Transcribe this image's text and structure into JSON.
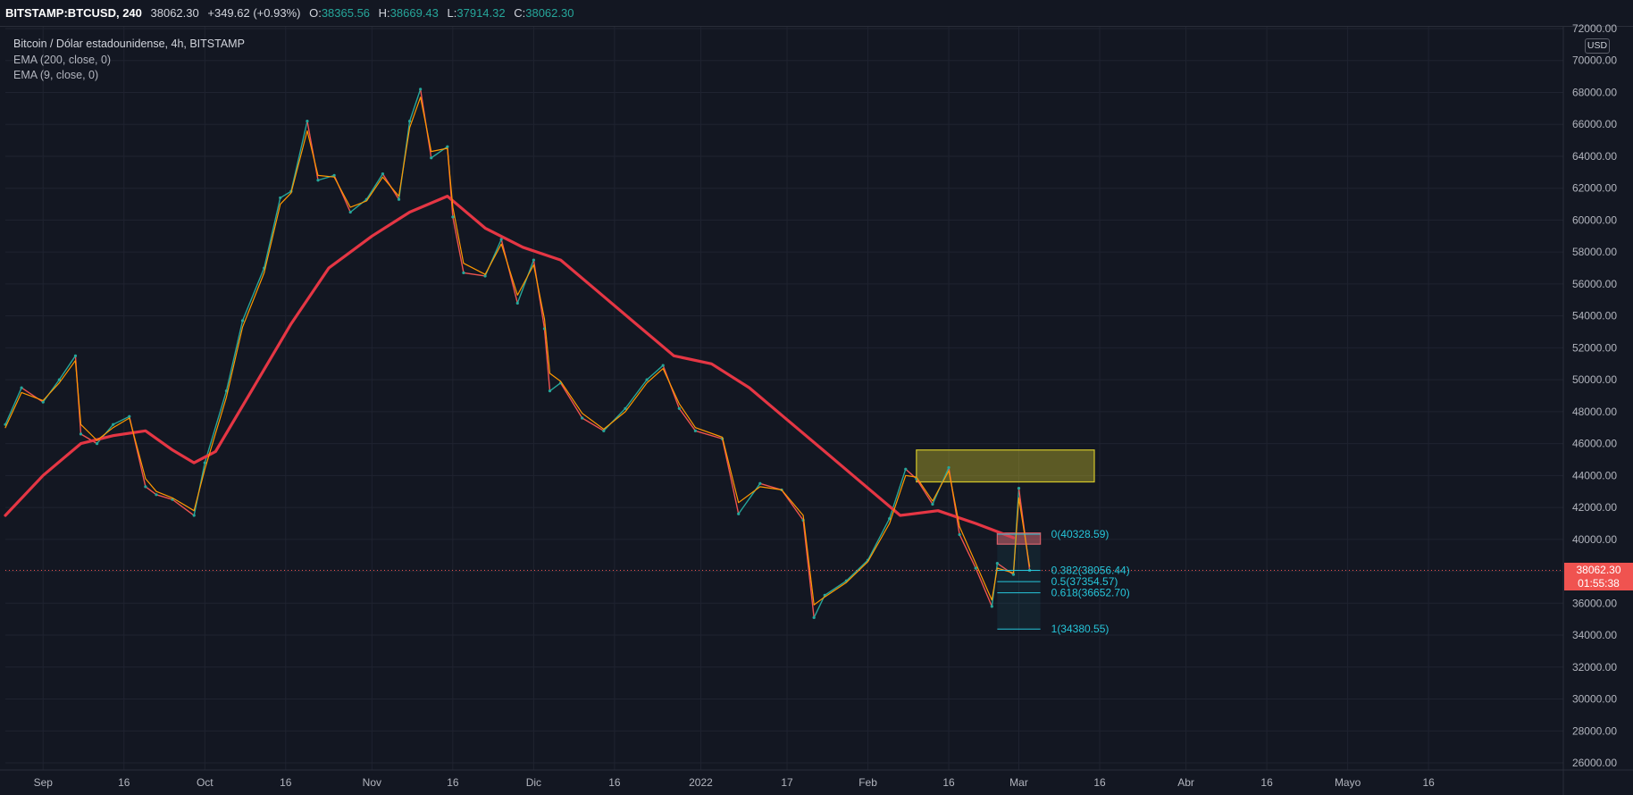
{
  "header": {
    "symbol": "BITSTAMP:BTCUSD, 240",
    "last": "38062.30",
    "change": "+349.62 (+0.93%)",
    "open_label": "O:",
    "open": "38365.56",
    "high_label": "H:",
    "high": "38669.43",
    "low_label": "L:",
    "low": "37914.32",
    "close_label": "C:",
    "close": "38062.30"
  },
  "legend": {
    "main": "Bitcoin / Dólar estadounidense, 4h, BITSTAMP",
    "ema200": "EMA (200, close, 0)",
    "ema9": "EMA (9, close, 0)"
  },
  "price_tag": {
    "price": "38062.30",
    "countdown": "01:55:38"
  },
  "currency": "USD",
  "colors": {
    "background": "#131722",
    "up": "#26a69a",
    "down": "#ef5350",
    "ema200": "#e53644",
    "ema9": "#ff9800",
    "fib": "#26c6da",
    "supply_zone": "#d4c72a",
    "resistance_zone": "#e05a62"
  },
  "chart_data": {
    "type": "line",
    "ylim": [
      26000,
      72000
    ],
    "y_ticks": [
      26000,
      28000,
      30000,
      32000,
      34000,
      36000,
      38000,
      40000,
      42000,
      44000,
      46000,
      48000,
      50000,
      52000,
      54000,
      56000,
      58000,
      60000,
      62000,
      64000,
      66000,
      68000,
      70000,
      72000
    ],
    "x_ticks": [
      "Sep",
      "16",
      "Oct",
      "16",
      "Nov",
      "16",
      "Dic",
      "16",
      "2022",
      "17",
      "Feb",
      "16",
      "Mar",
      "16",
      "Abr",
      "16",
      "Mayo",
      "16"
    ],
    "x_tick_dates": [
      "2021-09-01",
      "2021-09-16",
      "2021-10-01",
      "2021-10-16",
      "2021-11-01",
      "2021-11-16",
      "2021-12-01",
      "2021-12-16",
      "2022-01-01",
      "2022-01-17",
      "2022-02-01",
      "2022-02-16",
      "2022-03-01",
      "2022-03-16",
      "2022-04-01",
      "2022-04-16",
      "2022-05-01",
      "2022-05-16"
    ],
    "xlim": [
      "2021-08-25",
      "2022-06-10"
    ],
    "series": [
      {
        "name": "Bitcoin / Dólar estadounidense, 4h, BITSTAMP",
        "x": [
          "2021-08-25",
          "2021-08-28",
          "2021-09-01",
          "2021-09-04",
          "2021-09-07",
          "2021-09-08",
          "2021-09-11",
          "2021-09-14",
          "2021-09-17",
          "2021-09-20",
          "2021-09-22",
          "2021-09-25",
          "2021-09-29",
          "2021-10-01",
          "2021-10-05",
          "2021-10-08",
          "2021-10-12",
          "2021-10-15",
          "2021-10-17",
          "2021-10-20",
          "2021-10-22",
          "2021-10-25",
          "2021-10-28",
          "2021-10-31",
          "2021-11-03",
          "2021-11-06",
          "2021-11-08",
          "2021-11-10",
          "2021-11-12",
          "2021-11-15",
          "2021-11-16",
          "2021-11-18",
          "2021-11-22",
          "2021-11-25",
          "2021-11-28",
          "2021-12-01",
          "2021-12-03",
          "2021-12-04",
          "2021-12-06",
          "2021-12-10",
          "2021-12-14",
          "2021-12-18",
          "2021-12-22",
          "2021-12-25",
          "2021-12-28",
          "2021-12-31",
          "2022-01-05",
          "2022-01-08",
          "2022-01-12",
          "2022-01-16",
          "2022-01-20",
          "2022-01-22",
          "2022-01-24",
          "2022-01-28",
          "2022-02-01",
          "2022-02-05",
          "2022-02-08",
          "2022-02-10",
          "2022-02-13",
          "2022-02-16",
          "2022-02-18",
          "2022-02-21",
          "2022-02-24",
          "2022-02-25",
          "2022-02-28",
          "2022-03-01",
          "2022-03-03"
        ],
        "values": [
          47200,
          49500,
          48600,
          50000,
          51500,
          46600,
          46000,
          47200,
          47700,
          43300,
          42800,
          42500,
          41500,
          44800,
          49300,
          53700,
          57000,
          61400,
          61800,
          66200,
          62500,
          62800,
          60500,
          61300,
          62900,
          61300,
          66200,
          68200,
          63900,
          64600,
          60200,
          56700,
          56500,
          58800,
          54800,
          57500,
          53200,
          49300,
          49800,
          47600,
          46800,
          48200,
          50000,
          50900,
          48200,
          46800,
          46300,
          41600,
          43500,
          43100,
          41200,
          35100,
          36500,
          37400,
          38700,
          41300,
          44400,
          43800,
          42200,
          44500,
          40300,
          38200,
          35800,
          38500,
          37800,
          43200,
          38062
        ]
      },
      {
        "name": "EMA (200, close, 0)",
        "x": [
          "2021-08-25",
          "2021-09-01",
          "2021-09-08",
          "2021-09-14",
          "2021-09-20",
          "2021-09-25",
          "2021-09-29",
          "2021-10-03",
          "2021-10-10",
          "2021-10-17",
          "2021-10-24",
          "2021-11-01",
          "2021-11-08",
          "2021-11-15",
          "2021-11-22",
          "2021-11-29",
          "2021-12-06",
          "2021-12-13",
          "2021-12-20",
          "2021-12-27",
          "2022-01-03",
          "2022-01-10",
          "2022-01-17",
          "2022-01-24",
          "2022-01-31",
          "2022-02-07",
          "2022-02-14",
          "2022-02-21",
          "2022-02-28"
        ],
        "values": [
          41500,
          44000,
          46000,
          46500,
          46800,
          45600,
          44800,
          45500,
          49500,
          53500,
          57000,
          59000,
          60500,
          61500,
          59500,
          58300,
          57500,
          55500,
          53500,
          51500,
          51000,
          49500,
          47500,
          45500,
          43500,
          41500,
          41800,
          41000,
          40100
        ]
      },
      {
        "name": "EMA (9, close, 0)",
        "x": [
          "2021-08-25",
          "2021-08-28",
          "2021-09-01",
          "2021-09-04",
          "2021-09-07",
          "2021-09-08",
          "2021-09-11",
          "2021-09-14",
          "2021-09-17",
          "2021-09-20",
          "2021-09-22",
          "2021-09-25",
          "2021-09-29",
          "2021-10-01",
          "2021-10-05",
          "2021-10-08",
          "2021-10-12",
          "2021-10-15",
          "2021-10-17",
          "2021-10-20",
          "2021-10-22",
          "2021-10-25",
          "2021-10-28",
          "2021-10-31",
          "2021-11-03",
          "2021-11-06",
          "2021-11-08",
          "2021-11-10",
          "2021-11-12",
          "2021-11-15",
          "2021-11-16",
          "2021-11-18",
          "2021-11-22",
          "2021-11-25",
          "2021-11-28",
          "2021-12-01",
          "2021-12-03",
          "2021-12-04",
          "2021-12-06",
          "2021-12-10",
          "2021-12-14",
          "2021-12-18",
          "2021-12-22",
          "2021-12-25",
          "2021-12-28",
          "2021-12-31",
          "2022-01-05",
          "2022-01-08",
          "2022-01-12",
          "2022-01-16",
          "2022-01-20",
          "2022-01-22",
          "2022-01-24",
          "2022-01-28",
          "2022-02-01",
          "2022-02-05",
          "2022-02-08",
          "2022-02-10",
          "2022-02-13",
          "2022-02-16",
          "2022-02-18",
          "2022-02-21",
          "2022-02-24",
          "2022-02-25",
          "2022-02-28",
          "2022-03-01",
          "2022-03-03"
        ],
        "values": [
          47000,
          49200,
          48700,
          49800,
          51200,
          47200,
          46200,
          47000,
          47600,
          43800,
          43000,
          42600,
          41800,
          44400,
          48900,
          53300,
          56700,
          61000,
          61700,
          65600,
          62800,
          62700,
          60800,
          61200,
          62700,
          61500,
          65800,
          67700,
          64300,
          64500,
          60800,
          57300,
          56600,
          58500,
          55300,
          57200,
          53800,
          50400,
          49900,
          47900,
          46900,
          48000,
          49800,
          50700,
          48500,
          47000,
          46400,
          42300,
          43300,
          43100,
          41500,
          35900,
          36400,
          37300,
          38600,
          41000,
          44000,
          43900,
          42400,
          44300,
          40800,
          38500,
          36200,
          38200,
          37900,
          42600,
          38300
        ]
      }
    ],
    "rectangles": [
      {
        "name": "supply-zone",
        "x0": "2022-02-10",
        "x1": "2022-03-15",
        "y0": 43600,
        "y1": 45600
      },
      {
        "name": "resistance-zone",
        "x0": "2022-02-25",
        "x1": "2022-03-05",
        "y0": 39700,
        "y1": 40400
      }
    ],
    "fibonacci": {
      "x0": "2022-02-25",
      "x1": "2022-03-05",
      "levels": [
        {
          "label": "0(40328.59)",
          "value": 40328.59
        },
        {
          "label": "0.382(38056.44)",
          "value": 38056.44
        },
        {
          "label": "0.5(37354.57)",
          "value": 37354.57
        },
        {
          "label": "0.618(36652.70)",
          "value": 36652.7
        },
        {
          "label": "1(34380.55)",
          "value": 34380.55
        }
      ]
    },
    "last_price": 38062.3
  }
}
